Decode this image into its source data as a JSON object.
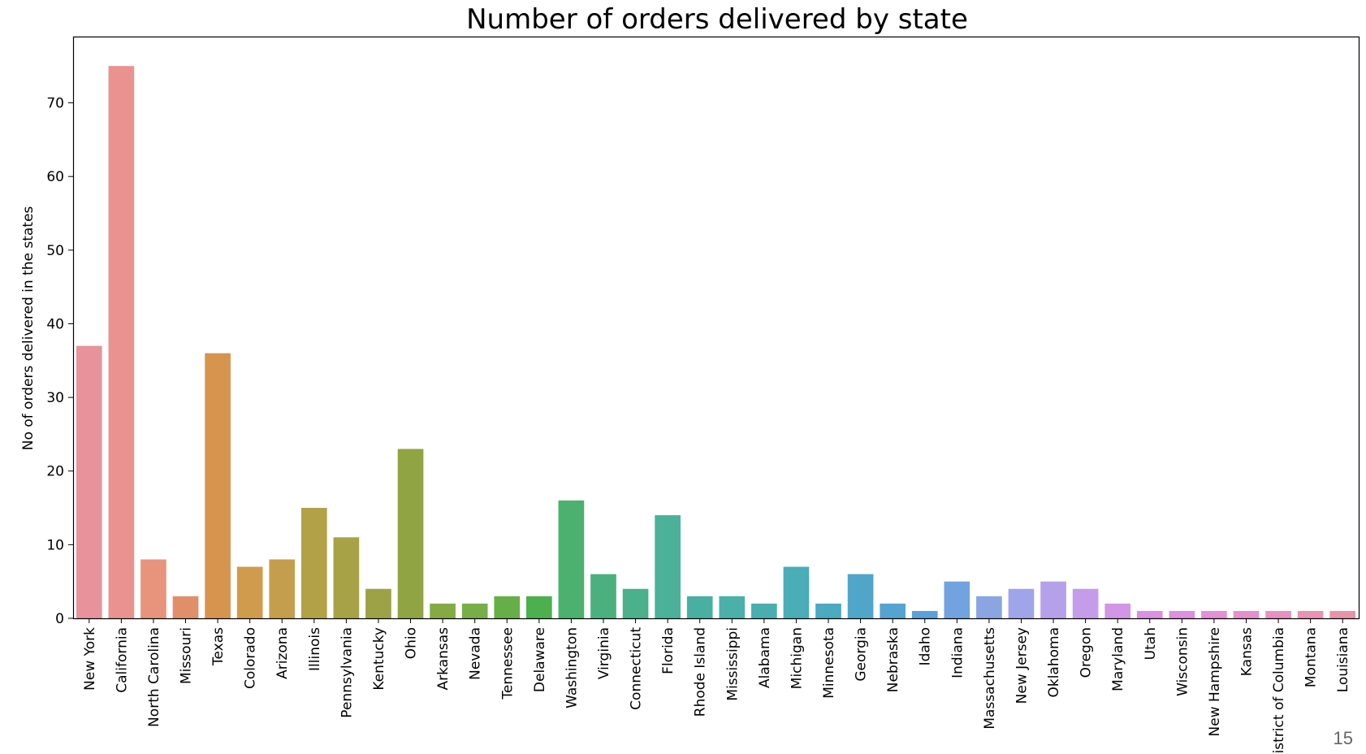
{
  "page_number": "15",
  "chart_data": {
    "type": "bar",
    "title": "Number of orders delivered by state",
    "xlabel": "",
    "ylabel": "No of orders delivered in the states",
    "ylim": [
      0,
      79
    ],
    "yticks": [
      0,
      10,
      20,
      30,
      40,
      50,
      60,
      70
    ],
    "grid": false,
    "categories": [
      "New York",
      "California",
      "North Carolina",
      "Missouri",
      "Texas",
      "Colorado",
      "Arizona",
      "Illinois",
      "Pennsylvania",
      "Kentucky",
      "Ohio",
      "Arkansas",
      "Nevada",
      "Tennessee",
      "Delaware",
      "Washington",
      "Virginia",
      "Connecticut",
      "Florida",
      "Rhode Island",
      "Mississippi",
      "Alabama",
      "Michigan",
      "Minnesota",
      "Georgia",
      "Nebraska",
      "Idaho",
      "Indiana",
      "Massachusetts",
      "New Jersey",
      "Oklahoma",
      "Oregon",
      "Maryland",
      "Utah",
      "Wisconsin",
      "New Hampshire",
      "Kansas",
      "District of Columbia",
      "Montana",
      "Louisiana"
    ],
    "values": [
      37,
      75,
      8,
      3,
      36,
      7,
      8,
      15,
      11,
      4,
      23,
      2,
      2,
      3,
      3,
      16,
      6,
      4,
      14,
      3,
      3,
      2,
      7,
      2,
      6,
      2,
      1,
      5,
      3,
      4,
      5,
      4,
      2,
      1,
      1,
      1,
      1,
      1,
      1,
      1
    ],
    "colors": [
      "#e8929c",
      "#ea9290",
      "#e8937c",
      "#e18e6b",
      "#d6944f",
      "#d09b4c",
      "#c49e4c",
      "#b3a147",
      "#a8a246",
      "#9ca245",
      "#90a444",
      "#85aa44",
      "#78ae48",
      "#66ae48",
      "#4cb04f",
      "#4cb16e",
      "#4bb07e",
      "#4bb08c",
      "#4bb199",
      "#4aafa3",
      "#4ab0a9",
      "#4aaeb0",
      "#4aadb8",
      "#4ba9c0",
      "#4fa6c8",
      "#55a3d1",
      "#5ca0d9",
      "#72a3e0",
      "#8aa5e2",
      "#a0a5e9",
      "#b4a1ea",
      "#c59ce9",
      "#d296e6",
      "#da90e3",
      "#e08fde",
      "#e48fd6",
      "#e690cb",
      "#e891c0",
      "#e893b3",
      "#e893a7"
    ]
  }
}
